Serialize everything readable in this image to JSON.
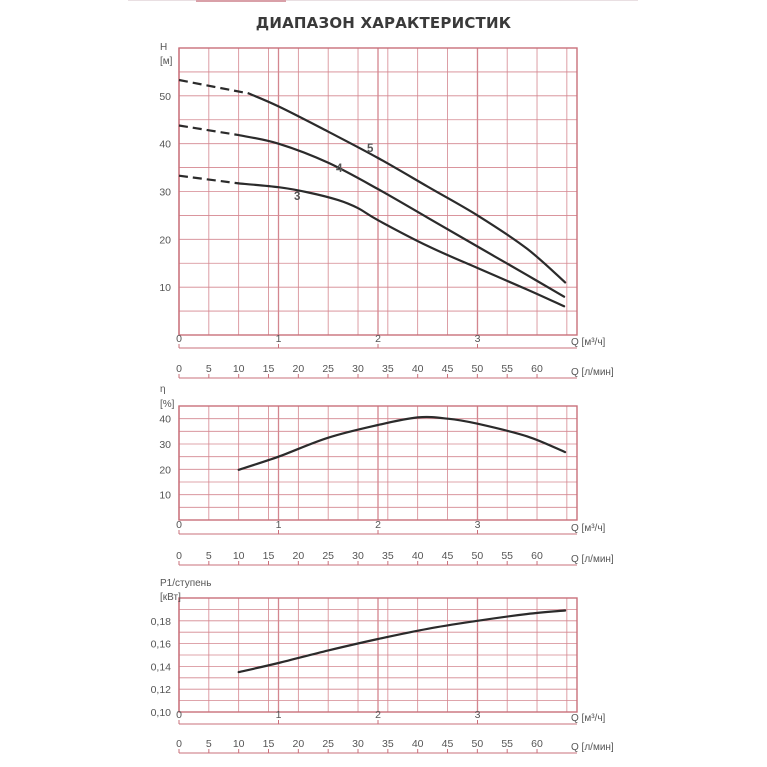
{
  "title": "ДИАПАЗОН ХАРАКТЕРИСТИК",
  "chart_data": [
    {
      "type": "line",
      "ylabel": "H",
      "yunit": "[м]",
      "xlabel_m3h": "Q [м³/ч]",
      "xlabel_lmin": "Q [л/мин]",
      "xlim_m3h": [
        0,
        4
      ],
      "xlim_lmin": [
        0,
        66.7
      ],
      "ylim": [
        0,
        60
      ],
      "yticks": [
        10,
        20,
        30,
        40,
        50
      ],
      "xticks_m3h": [
        0,
        1,
        2,
        3
      ],
      "xticks_lmin": [
        0,
        5,
        10,
        15,
        20,
        25,
        30,
        35,
        40,
        45,
        50,
        55,
        60
      ],
      "grid": true,
      "series": [
        {
          "name": "3",
          "dashed": [
            [
              0,
              33.3
            ],
            [
              0.6,
              31.7
            ]
          ],
          "points": [
            [
              0.6,
              31.7
            ],
            [
              1.0,
              30.9
            ],
            [
              1.3,
              29.8
            ],
            [
              1.6,
              28.2
            ],
            [
              1.8,
              26.5
            ],
            [
              2.0,
              24.0
            ],
            [
              2.5,
              18.6
            ],
            [
              3.0,
              14.0
            ],
            [
              3.5,
              9.5
            ],
            [
              3.87,
              6.0
            ]
          ]
        },
        {
          "name": "4",
          "dashed": [
            [
              0,
              43.8
            ],
            [
              0.6,
              41.8
            ]
          ],
          "points": [
            [
              0.6,
              41.8
            ],
            [
              1.0,
              40.0
            ],
            [
              1.5,
              36.0
            ],
            [
              2.0,
              30.5
            ],
            [
              2.5,
              24.5
            ],
            [
              3.0,
              18.5
            ],
            [
              3.5,
              12.5
            ],
            [
              3.87,
              8.0
            ]
          ]
        },
        {
          "name": "5",
          "dashed": [
            [
              0,
              53.3
            ],
            [
              0.7,
              50.5
            ]
          ],
          "points": [
            [
              0.7,
              50.5
            ],
            [
              1.0,
              47.8
            ],
            [
              1.5,
              42.5
            ],
            [
              2.0,
              37.0
            ],
            [
              2.5,
              31.0
            ],
            [
              3.0,
              25.0
            ],
            [
              3.5,
              18.0
            ],
            [
              3.88,
              11.0
            ]
          ]
        }
      ]
    },
    {
      "type": "line",
      "ylabel": "η",
      "yunit": "[%]",
      "xlabel_m3h": "Q [м³/ч]",
      "xlabel_lmin": "Q [л/мин]",
      "xlim_m3h": [
        0,
        4
      ],
      "xlim_lmin": [
        0,
        66.7
      ],
      "ylim": [
        0,
        45
      ],
      "yticks": [
        10,
        20,
        30,
        40
      ],
      "xticks_m3h": [
        0,
        1,
        2,
        3
      ],
      "xticks_lmin": [
        0,
        5,
        10,
        15,
        20,
        25,
        30,
        35,
        40,
        45,
        50,
        55,
        60
      ],
      "grid": true,
      "series": [
        {
          "name": "",
          "points": [
            [
              0.6,
              19.8
            ],
            [
              1.0,
              25.0
            ],
            [
              1.5,
              32.5
            ],
            [
              2.0,
              37.5
            ],
            [
              2.4,
              40.5
            ],
            [
              2.7,
              40.0
            ],
            [
              3.0,
              38.0
            ],
            [
              3.5,
              33.0
            ],
            [
              3.88,
              26.8
            ]
          ]
        }
      ]
    },
    {
      "type": "line",
      "ylabel": "P1/ступень",
      "yunit": "[кВт]",
      "xlabel_m3h": "Q [м³/ч]",
      "xlabel_lmin": "Q [л/мин]",
      "xlim_m3h": [
        0,
        4
      ],
      "xlim_lmin": [
        0,
        66.7
      ],
      "ylim": [
        0.1,
        0.2
      ],
      "ytick_labels": [
        "0,10",
        "0,12",
        "0,14",
        "0,16",
        "0,18"
      ],
      "yticks": [
        0.1,
        0.12,
        0.14,
        0.16,
        0.18
      ],
      "xticks_m3h": [
        0,
        1,
        2,
        3
      ],
      "xticks_lmin": [
        0,
        5,
        10,
        15,
        20,
        25,
        30,
        35,
        40,
        45,
        50,
        55,
        60
      ],
      "grid": true,
      "series": [
        {
          "name": "",
          "points": [
            [
              0.6,
              0.135
            ],
            [
              1.0,
              0.143
            ],
            [
              1.5,
              0.154
            ],
            [
              2.0,
              0.164
            ],
            [
              2.5,
              0.173
            ],
            [
              3.0,
              0.18
            ],
            [
              3.5,
              0.186
            ],
            [
              3.88,
              0.189
            ]
          ]
        }
      ]
    }
  ]
}
